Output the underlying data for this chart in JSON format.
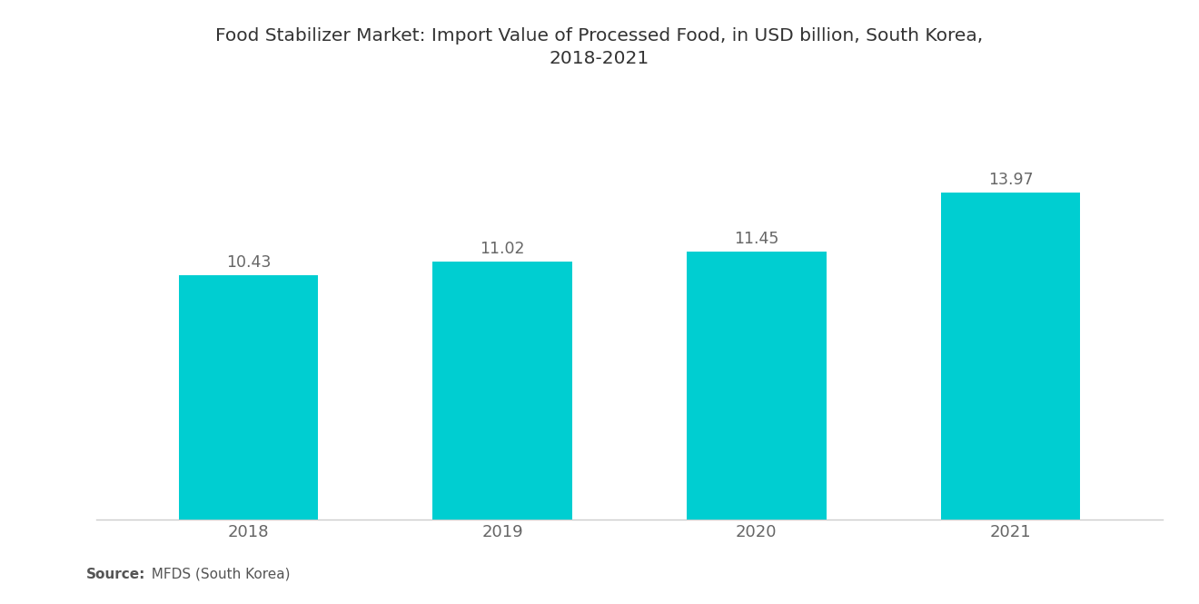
{
  "title_line1": "Food Stabilizer Market: Import Value of Processed Food, in USD billion, South Korea,",
  "title_line2": "2018-2021",
  "categories": [
    "2018",
    "2019",
    "2020",
    "2021"
  ],
  "values": [
    10.43,
    11.02,
    11.45,
    13.97
  ],
  "bar_color": "#00CED1",
  "background_color": "#ffffff",
  "title_fontsize": 14.5,
  "label_fontsize": 12.5,
  "tick_fontsize": 13,
  "source_bold": "Source:",
  "source_rest": "  MFDS (South Korea)",
  "ylim": [
    0,
    16.5
  ],
  "bar_width": 0.55,
  "label_color": "#666666",
  "tick_color": "#666666",
  "title_color": "#333333"
}
